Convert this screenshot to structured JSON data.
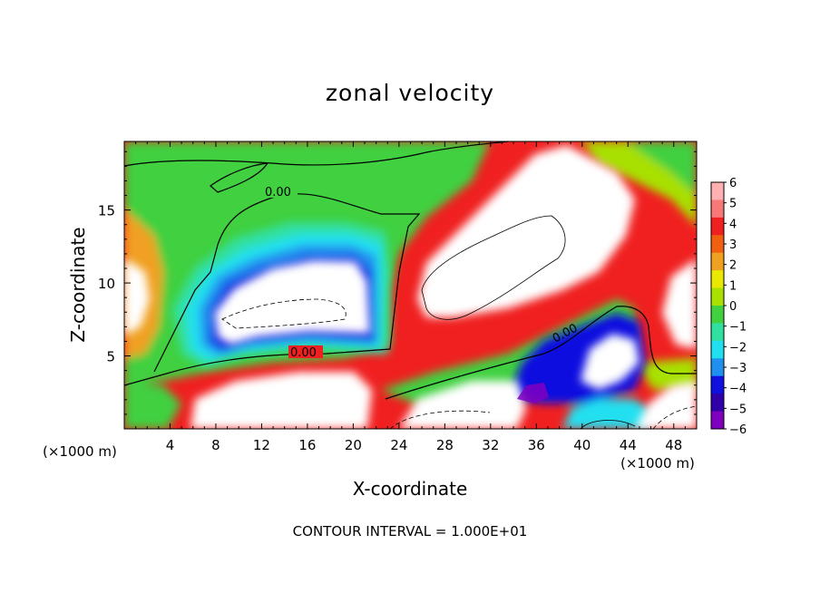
{
  "chart_data": {
    "type": "heatmap",
    "title": "zonal velocity",
    "xlabel": "X-coordinate",
    "ylabel": "Z-coordinate",
    "x_unit": "(×1000 m)",
    "xlim": [
      0,
      50
    ],
    "ylim": [
      0,
      19.7
    ],
    "x_ticks": [
      4,
      8,
      12,
      16,
      20,
      24,
      28,
      32,
      36,
      40,
      44,
      48
    ],
    "y_ticks": [
      5,
      10,
      15
    ],
    "colorbar": {
      "levels": [
        6,
        5,
        4,
        3,
        2,
        1,
        0,
        -1,
        -2,
        -3,
        -4,
        -5,
        -6
      ],
      "colors": [
        "#ffb0b0",
        "#f87878",
        "#f02020",
        "#f06010",
        "#f0a020",
        "#e8e800",
        "#a8e000",
        "#40d040",
        "#30e0a0",
        "#20e0f0",
        "#2090f0",
        "#1010e0",
        "#3000a8",
        "#8000c0"
      ]
    },
    "contour_labels": [
      "0.00",
      "0.00",
      "0.00"
    ],
    "contour_interval_text": "CONTOUR INTERVAL = 1.000E+01"
  }
}
